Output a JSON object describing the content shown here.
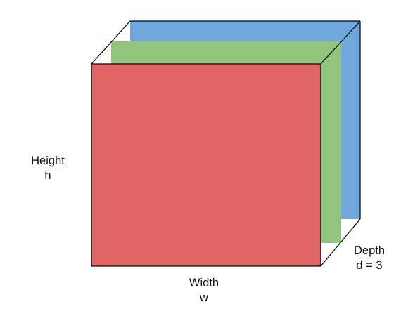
{
  "diagram": {
    "layers": [
      {
        "name": "blue",
        "color": "#6fa8dc"
      },
      {
        "name": "green",
        "color": "#93c47d"
      },
      {
        "name": "red",
        "color": "#e06666"
      }
    ],
    "outline_color": "#000000",
    "labels": {
      "height": {
        "title": "Height",
        "symbol": "h"
      },
      "width": {
        "title": "Width",
        "symbol": "w"
      },
      "depth": {
        "title": "Depth",
        "symbol": "d = 3"
      }
    }
  }
}
